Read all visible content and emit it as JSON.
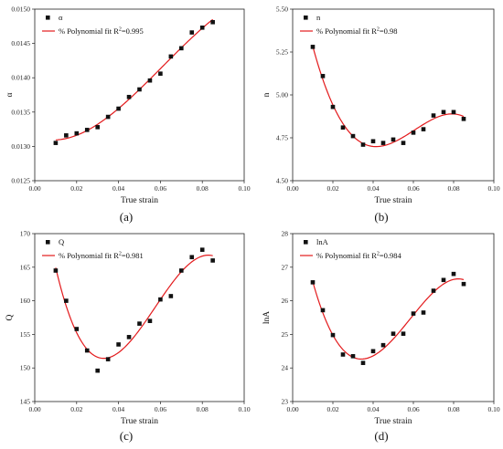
{
  "chart_data": [
    {
      "type": "scatter",
      "panel_label": "(a)",
      "xlabel": "True strain",
      "ylabel": "α",
      "xlim": [
        0.0,
        0.1
      ],
      "ylim": [
        0.0125,
        0.015
      ],
      "xticks": [
        "0.00",
        "0.02",
        "0.04",
        "0.06",
        "0.08",
        "0.10"
      ],
      "yticks": [
        "0.0125",
        "0.0130",
        "0.0135",
        "0.0140",
        "0.0145",
        "0.0150"
      ],
      "series": [
        {
          "name": "α",
          "x": [
            0.01,
            0.015,
            0.02,
            0.025,
            0.03,
            0.035,
            0.04,
            0.045,
            0.05,
            0.055,
            0.06,
            0.065,
            0.07,
            0.075,
            0.08,
            0.085
          ],
          "y": [
            0.01305,
            0.01316,
            0.01319,
            0.01324,
            0.01328,
            0.01343,
            0.01355,
            0.01372,
            0.01383,
            0.01396,
            0.01406,
            0.01431,
            0.01443,
            0.01466,
            0.01473,
            0.01481
          ]
        }
      ],
      "fit": {
        "name": "% Polynomial fit R",
        "r2": "2",
        "r2_value": "=0.995",
        "degree": 3
      },
      "legend_position": "top-left",
      "grid": false
    },
    {
      "type": "scatter",
      "panel_label": "(b)",
      "xlabel": "True strain",
      "ylabel": "n",
      "xlim": [
        0.0,
        0.1
      ],
      "ylim": [
        4.5,
        5.5
      ],
      "xticks": [
        "0.00",
        "0.02",
        "0.04",
        "0.06",
        "0.08",
        "0.10"
      ],
      "yticks": [
        "4.50",
        "4.75",
        "5.00",
        "5.25",
        "5.50"
      ],
      "series": [
        {
          "name": "n",
          "x": [
            0.01,
            0.015,
            0.02,
            0.025,
            0.03,
            0.035,
            0.04,
            0.045,
            0.05,
            0.055,
            0.06,
            0.065,
            0.07,
            0.075,
            0.08,
            0.085
          ],
          "y": [
            5.28,
            5.11,
            4.93,
            4.81,
            4.76,
            4.71,
            4.73,
            4.72,
            4.74,
            4.72,
            4.78,
            4.8,
            4.88,
            4.9,
            4.9,
            4.86
          ]
        }
      ],
      "fit": {
        "name": "% Polynomial fit R",
        "r2": "2",
        "r2_value": "=0.98",
        "degree": 4
      },
      "legend_position": "top-left",
      "grid": false
    },
    {
      "type": "scatter",
      "panel_label": "(c)",
      "xlabel": "True strain",
      "ylabel": "Q",
      "xlim": [
        0.0,
        0.1
      ],
      "ylim": [
        145,
        170
      ],
      "xticks": [
        "0.00",
        "0.02",
        "0.04",
        "0.06",
        "0.08",
        "0.10"
      ],
      "yticks": [
        "145",
        "150",
        "155",
        "160",
        "165",
        "170"
      ],
      "series": [
        {
          "name": "Q",
          "x": [
            0.01,
            0.015,
            0.02,
            0.025,
            0.03,
            0.035,
            0.04,
            0.045,
            0.05,
            0.055,
            0.06,
            0.065,
            0.07,
            0.075,
            0.08,
            0.085
          ],
          "y": [
            164.5,
            160.0,
            155.8,
            152.6,
            149.6,
            151.3,
            153.5,
            154.6,
            156.6,
            157.0,
            160.2,
            160.7,
            164.5,
            166.5,
            167.6,
            166.0
          ]
        }
      ],
      "fit": {
        "name": "% Polynomial fit R",
        "r2": "2",
        "r2_value": "=0.981",
        "degree": 4
      },
      "legend_position": "top-left",
      "grid": false
    },
    {
      "type": "scatter",
      "panel_label": "(d)",
      "xlabel": "True strain",
      "ylabel": "lnA",
      "xlim": [
        0.0,
        0.1
      ],
      "ylim": [
        23,
        28
      ],
      "xticks": [
        "0.00",
        "0.02",
        "0.04",
        "0.06",
        "0.08",
        "0.10"
      ],
      "yticks": [
        "23",
        "24",
        "25",
        "26",
        "27",
        "28"
      ],
      "series": [
        {
          "name": "lnA",
          "x": [
            0.01,
            0.015,
            0.02,
            0.025,
            0.03,
            0.035,
            0.04,
            0.045,
            0.05,
            0.055,
            0.06,
            0.065,
            0.07,
            0.075,
            0.08,
            0.085
          ],
          "y": [
            26.55,
            25.72,
            24.98,
            24.4,
            24.35,
            24.15,
            24.5,
            24.68,
            25.02,
            25.02,
            25.62,
            25.65,
            26.3,
            26.62,
            26.8,
            26.5
          ]
        }
      ],
      "fit": {
        "name": "% Polynomial fit R",
        "r2": "2",
        "r2_value": "=0.984",
        "degree": 4
      },
      "legend_position": "top-left",
      "grid": false
    }
  ]
}
